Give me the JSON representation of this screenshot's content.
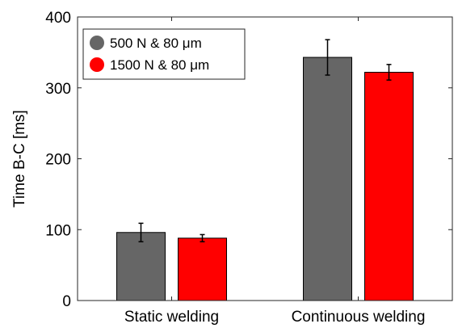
{
  "chart_data": {
    "type": "bar",
    "title": "",
    "xlabel": "",
    "ylabel": "Time B-C [ms]",
    "ylim": [
      0,
      400
    ],
    "yticks": [
      0,
      100,
      200,
      300,
      400
    ],
    "categories": [
      "Static welding",
      "Continuous welding"
    ],
    "grid": false,
    "legend_position": "top-left",
    "series": [
      {
        "name": "500 N & 80 μm",
        "color": "#666666",
        "values": [
          96,
          343
        ],
        "errors": [
          13,
          25
        ]
      },
      {
        "name": "1500 N & 80 μm",
        "color": "#ff0000",
        "values": [
          88,
          322
        ],
        "errors": [
          5,
          11
        ]
      }
    ]
  }
}
